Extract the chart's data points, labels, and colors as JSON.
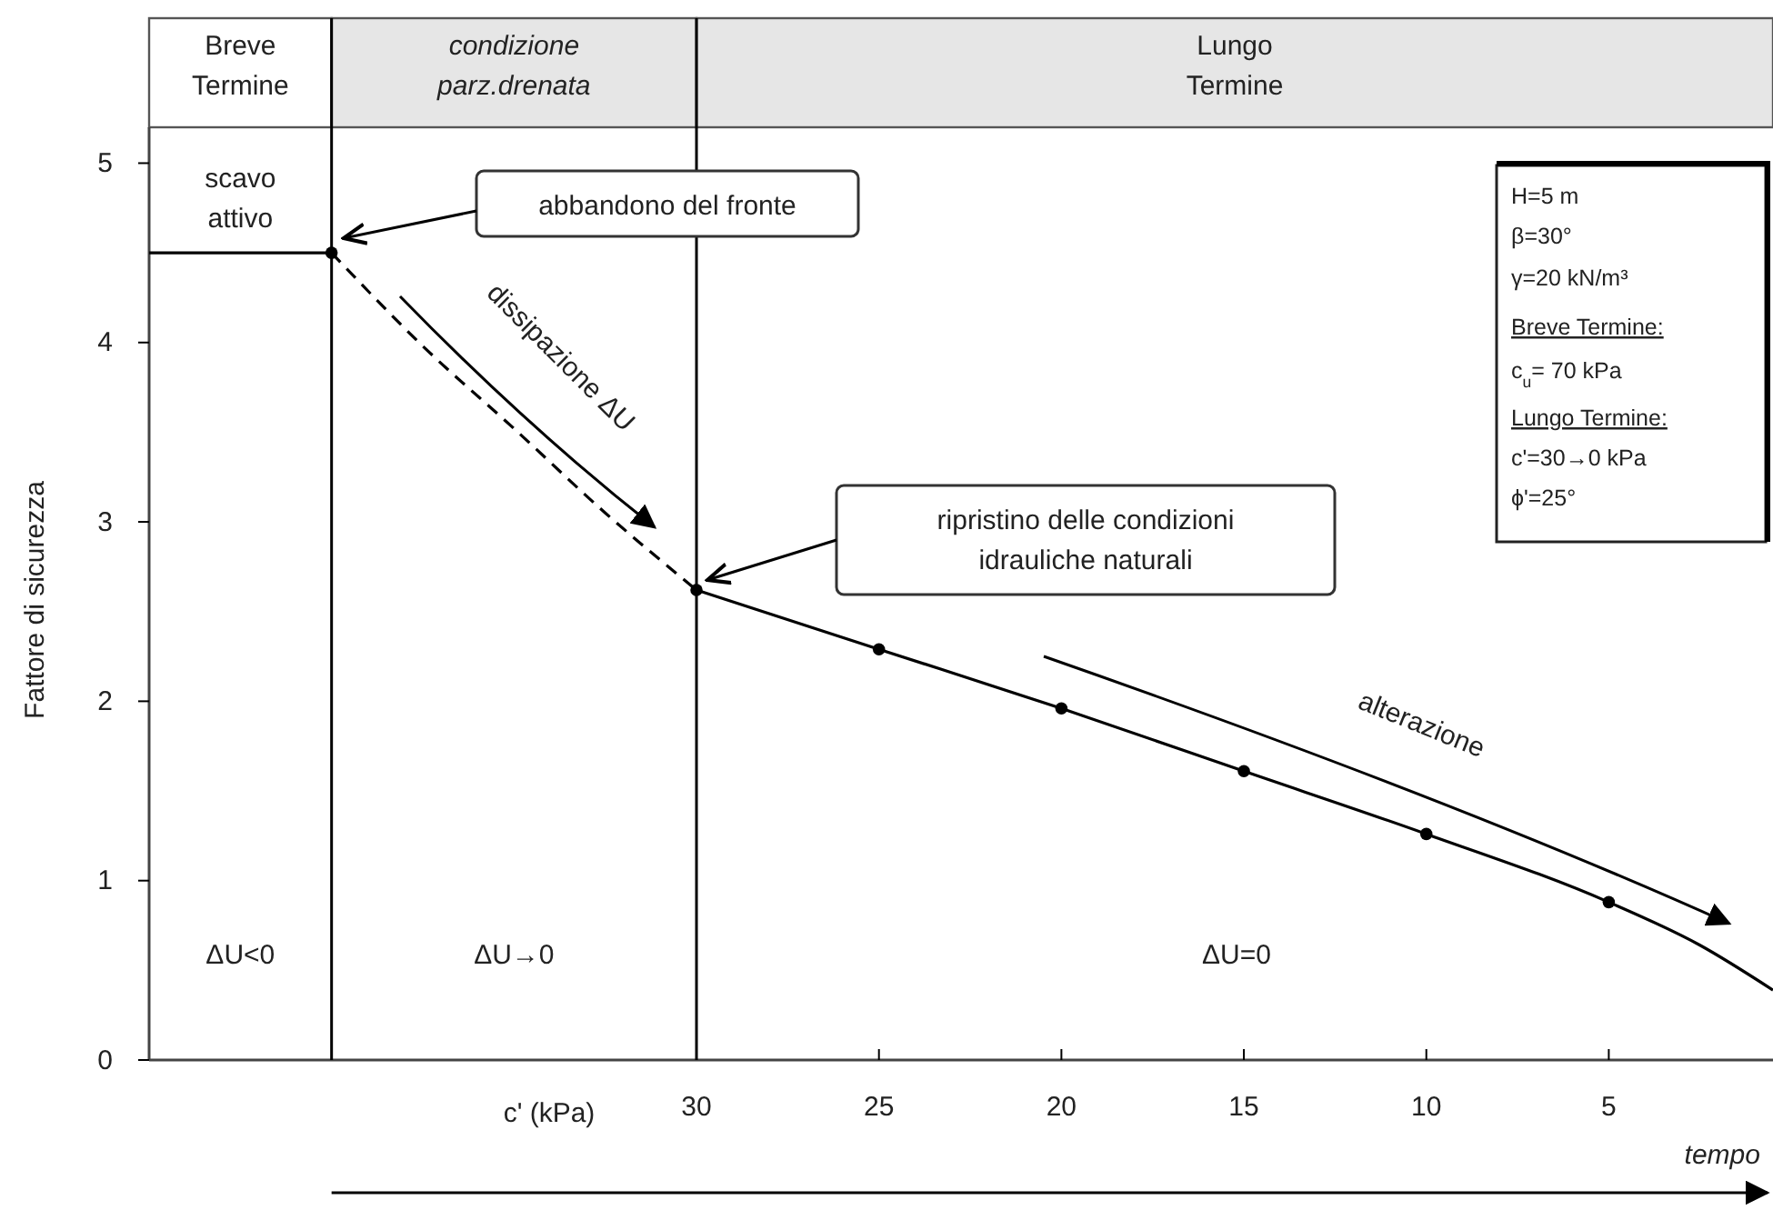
{
  "chart_data": {
    "type": "line",
    "xlabel": "c' (kPa)",
    "ylabel": "Fattore di sicurezza",
    "xlim": [
      45,
      0.5
    ],
    "ylim": [
      0,
      5.2
    ],
    "xticks": [
      30,
      25,
      20,
      15,
      10,
      5
    ],
    "yticks": [
      0,
      1,
      2,
      3,
      4,
      5
    ],
    "grid": false,
    "series": [
      {
        "color": "#000000",
        "line_style": "solid",
        "x": [
          45,
          40
        ],
        "values": [
          4.5,
          4.5
        ]
      },
      {
        "color": "#000000",
        "line_style": "dashed",
        "x": [
          40,
          37.5,
          35,
          32.5,
          30
        ],
        "values": [
          4.5,
          3.98,
          3.52,
          3.05,
          2.62
        ]
      },
      {
        "color": "#000000",
        "line_style": "solid",
        "x": [
          30,
          25,
          20,
          15,
          10,
          5,
          2.5,
          0.5
        ],
        "values": [
          2.62,
          2.29,
          1.96,
          1.61,
          1.26,
          0.88,
          0.64,
          0.39
        ]
      },
      {
        "type": "scatter",
        "color": "#000000",
        "marker": "circle",
        "x": [
          40,
          30,
          25,
          20,
          15,
          10,
          5
        ],
        "values": [
          4.5,
          2.62,
          2.29,
          1.96,
          1.61,
          1.26,
          0.88
        ]
      }
    ],
    "ref_lines": [
      {
        "axis": "x",
        "value": 40,
        "color": "#000000"
      },
      {
        "axis": "x",
        "value": 30,
        "color": "#000000"
      }
    ],
    "annotations": [
      "scavo attivo",
      "abbandono del fronte",
      "dissipazione ΔU",
      "ripristino delle condizioni idrauliche naturali",
      "alterazione",
      "ΔU<0",
      "ΔU→0",
      "ΔU=0",
      "H=5 m",
      "β=30°",
      "γ=20 kN/m³",
      "Breve Termine:",
      "c$_{u}$= 70 kPa",
      "Lungo Termine:",
      "c'=30→0 kPa",
      "ϕ'=25°",
      "tempo",
      "Breve Termine",
      "condizione parz.drenata",
      "Lungo Termine"
    ]
  }
}
